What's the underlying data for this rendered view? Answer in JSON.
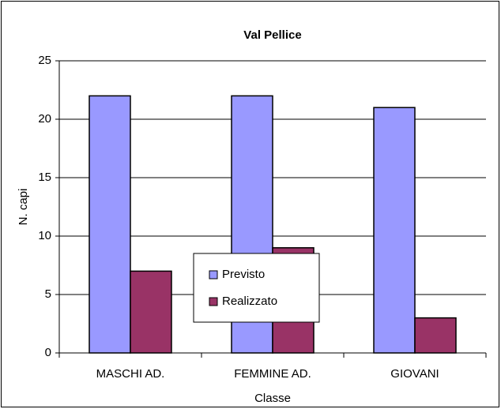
{
  "chart_data": {
    "type": "bar",
    "title": "Val Pellice",
    "x_label": "Classe",
    "y_label": "N. capi",
    "categories": [
      "MASCHI AD.",
      "FEMMINE AD.",
      "GIOVANI"
    ],
    "series": [
      {
        "name": "Previsto",
        "color": "#9999ff",
        "values": [
          22,
          22,
          21
        ]
      },
      {
        "name": "Realizzato",
        "color": "#993366",
        "values": [
          7,
          9,
          3
        ]
      }
    ],
    "ylim": [
      0,
      25
    ],
    "yticks": [
      0,
      5,
      10,
      15,
      20,
      25
    ],
    "grid": true,
    "legend": "center"
  }
}
